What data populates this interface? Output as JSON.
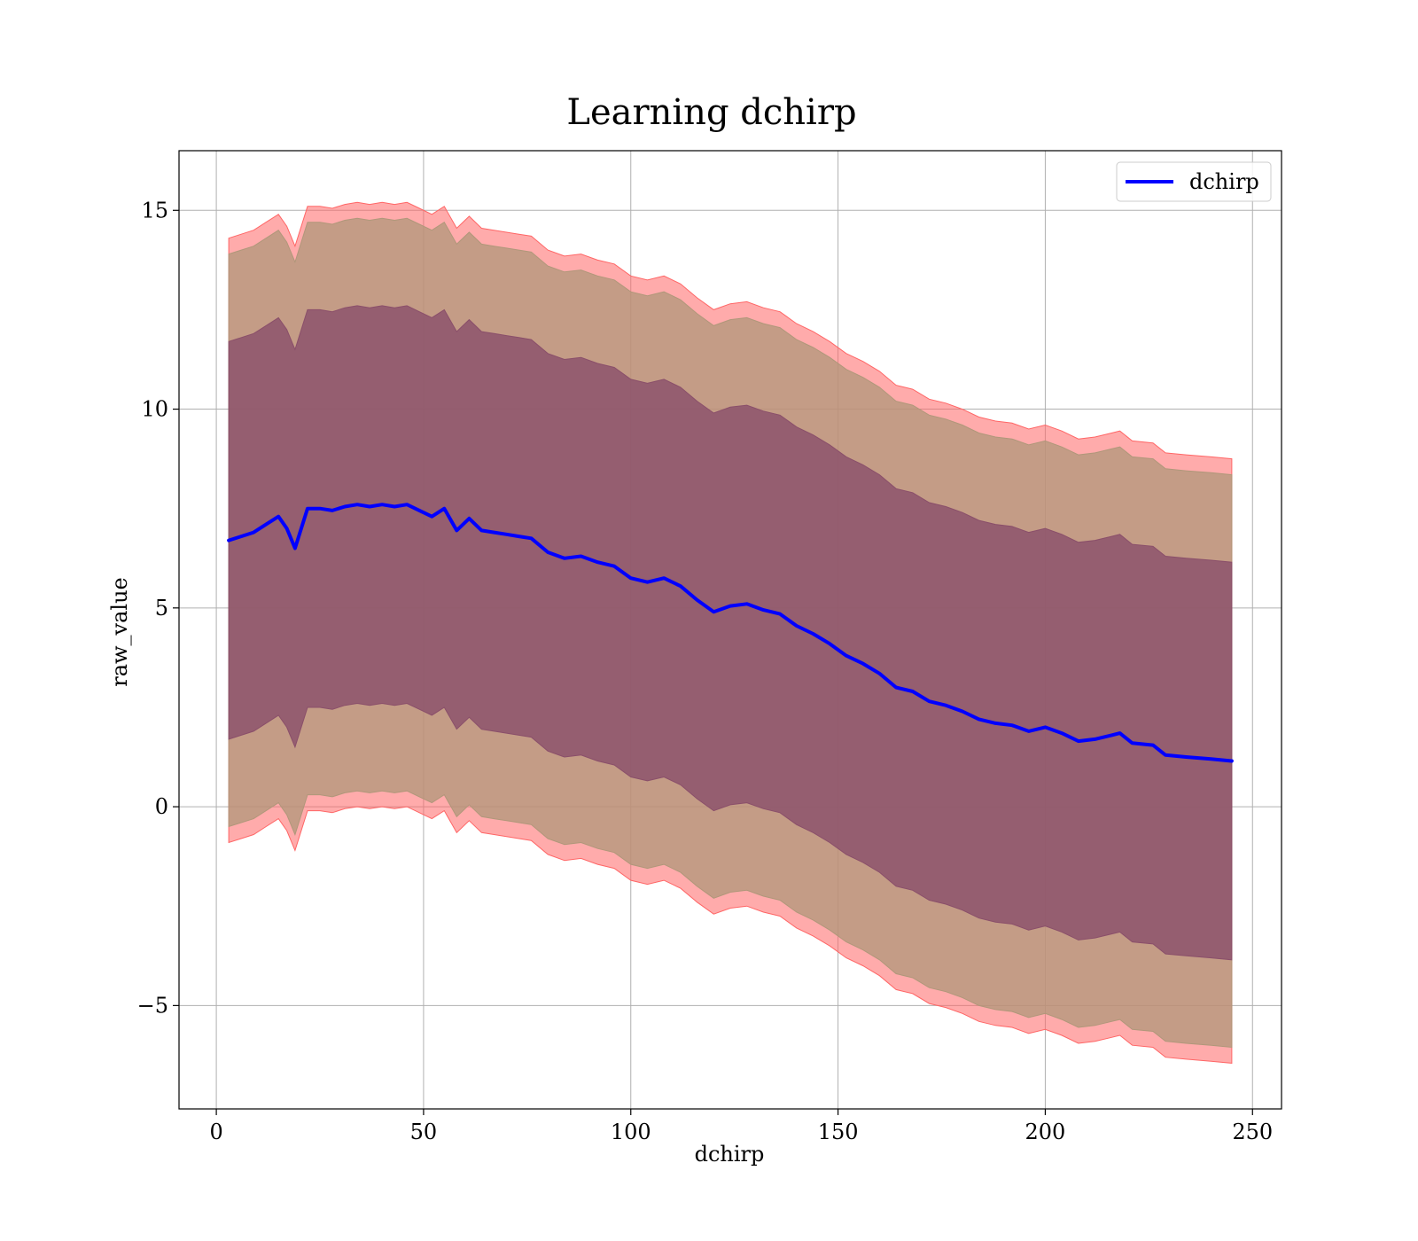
{
  "chart_data": {
    "type": "area",
    "title": "Learning dchirp",
    "xlabel": "dchirp",
    "ylabel": "raw_value",
    "xlim": [
      -9,
      257
    ],
    "ylim": [
      -7.6,
      16.5
    ],
    "xticks": [
      0,
      50,
      100,
      150,
      200,
      250
    ],
    "yticks": [
      -5,
      0,
      5,
      10,
      15
    ],
    "ytick_labels": [
      "−5",
      "0",
      "5",
      "10",
      "15"
    ],
    "grid": true,
    "legend_position": "top-right",
    "colors": {
      "line": "#0000ff",
      "outer_band": "#ff6666",
      "middle_band": "#b0977a",
      "inner_band": "#8a4f6a",
      "grid": "#b0b0b0",
      "frame": "#000000"
    },
    "series": [
      {
        "name": "dchirp",
        "x": [
          3,
          6,
          9,
          12,
          15,
          17,
          19,
          22,
          25,
          28,
          31,
          34,
          37,
          40,
          43,
          46,
          49,
          52,
          55,
          58,
          61,
          64,
          67,
          70,
          73,
          76,
          80,
          84,
          88,
          92,
          96,
          100,
          104,
          108,
          112,
          116,
          120,
          124,
          128,
          132,
          136,
          140,
          144,
          148,
          152,
          156,
          160,
          164,
          168,
          172,
          176,
          180,
          184,
          188,
          192,
          196,
          200,
          204,
          208,
          212,
          216,
          218,
          221,
          226,
          229,
          234,
          240,
          245
        ],
        "values": [
          6.7,
          6.8,
          6.9,
          7.1,
          7.3,
          7.0,
          6.5,
          7.5,
          7.5,
          7.45,
          7.55,
          7.6,
          7.55,
          7.6,
          7.55,
          7.6,
          7.45,
          7.3,
          7.5,
          6.95,
          7.25,
          6.95,
          6.9,
          6.85,
          6.8,
          6.75,
          6.4,
          6.25,
          6.3,
          6.15,
          6.05,
          5.75,
          5.65,
          5.75,
          5.55,
          5.2,
          4.9,
          5.05,
          5.1,
          4.95,
          4.85,
          4.55,
          4.35,
          4.1,
          3.8,
          3.6,
          3.35,
          3.0,
          2.9,
          2.65,
          2.55,
          2.4,
          2.2,
          2.1,
          2.05,
          1.9,
          2.0,
          1.85,
          1.65,
          1.7,
          1.8,
          1.85,
          1.6,
          1.55,
          1.3,
          1.25,
          1.2,
          1.15
        ],
        "band_half_widths": [
          5.0,
          7.2,
          7.6
        ]
      }
    ]
  }
}
